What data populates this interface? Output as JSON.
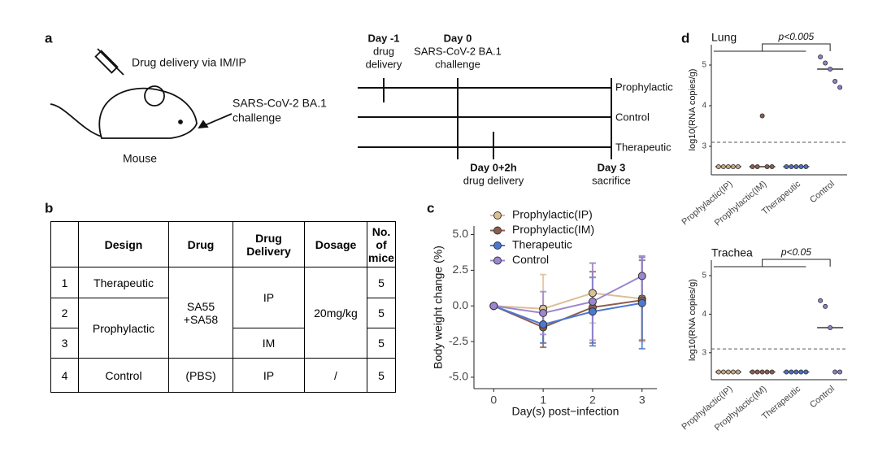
{
  "panel_labels": {
    "a": "a",
    "b": "b",
    "c": "c",
    "d": "d"
  },
  "diagram": {
    "drug_delivery": "Drug delivery via IM/IP",
    "challenge_line1": "SARS-CoV-2 BA.1",
    "challenge_line2": "challenge",
    "mouse": "Mouse",
    "timeline": {
      "day_m1": "Day -1",
      "day_m1_note1": "drug",
      "day_m1_note2": "delivery",
      "day0": "Day 0",
      "day0_note1": "SARS-CoV-2 BA.1",
      "day0_note2": "challenge",
      "groups": [
        "Prophylactic",
        "Control",
        "Therapeutic"
      ],
      "day0_2h": "Day 0+2h",
      "day0_2h_note": "drug delivery",
      "day3": "Day 3",
      "day3_note": "sacrifice"
    }
  },
  "table": {
    "header": [
      "Design",
      "Drug",
      "Drug Delivery",
      "Dosage",
      "No. of mice"
    ],
    "row_numbers": [
      "1",
      "2",
      "3",
      "4"
    ],
    "design": [
      "Therapeutic",
      "Prophylactic",
      "Control"
    ],
    "drug": [
      "SA55 +SA58",
      "(PBS)"
    ],
    "delivery": [
      "IP",
      "IM",
      "IP"
    ],
    "dosage": [
      "20mg/kg",
      "/"
    ],
    "mice": [
      "5",
      "5",
      "5",
      "5"
    ]
  },
  "chart_data": [
    {
      "type": "line",
      "xlabel": "Day(s) post−infection",
      "ylabel": "Body weight change (%)",
      "x": [
        0,
        1,
        2,
        3
      ],
      "xlim": [
        -0.4,
        3.3
      ],
      "xticks": [
        0,
        1,
        2,
        3
      ],
      "ylim": [
        -5.8,
        5.6
      ],
      "yticks": [
        {
          "value": -5,
          "label": "-5.0"
        },
        {
          "value": -2.5,
          "label": "-2.5"
        },
        {
          "value": 0,
          "label": "0.0"
        },
        {
          "value": 2.5,
          "label": "2.5"
        },
        {
          "value": 5,
          "label": "5.0"
        }
      ],
      "series": [
        {
          "name": "Prophylactic(IP)",
          "color": "#dcbf95",
          "values": [
            0,
            -0.2,
            0.9,
            0.5
          ],
          "errors": [
            0,
            2.4,
            2.1,
            3.0
          ]
        },
        {
          "name": "Prophylactic(IM)",
          "color": "#8c5e50",
          "values": [
            0,
            -1.5,
            -0.1,
            0.4
          ],
          "errors": [
            0,
            1.4,
            2.5,
            2.8
          ]
        },
        {
          "name": "Therapeutic",
          "color": "#4b78d2",
          "values": [
            0,
            -1.3,
            -0.4,
            0.2
          ],
          "errors": [
            0,
            1.3,
            2.4,
            3.2
          ]
        },
        {
          "name": "Control",
          "color": "#9d86cf",
          "values": [
            0,
            -0.5,
            0.3,
            2.1
          ],
          "errors": [
            0,
            1.5,
            2.7,
            1.4
          ]
        }
      ]
    },
    {
      "type": "dot",
      "title": "Lung",
      "ylabel": "log10(RNA copies/g)",
      "annotation": "p<0.005",
      "categories": [
        "Prophylactic(IP)",
        "Prophylactic(IM)",
        "Therapeutic",
        "Control"
      ],
      "colors": [
        "#c9a77f",
        "#8c5e50",
        "#4b6fc6",
        "#8f7fc9"
      ],
      "points": [
        [
          2.5,
          2.5,
          2.5,
          2.5,
          2.5
        ],
        [
          2.5,
          2.5,
          3.75,
          2.5,
          2.5
        ],
        [
          2.5,
          2.5,
          2.5,
          2.5,
          2.5
        ],
        [
          5.2,
          5.05,
          4.9,
          4.6,
          4.45
        ]
      ],
      "medians": [
        2.5,
        2.5,
        2.5,
        4.9
      ],
      "threshold": 3.1,
      "ylim": [
        2.3,
        5.5
      ],
      "yticks": [
        3,
        4,
        5
      ]
    },
    {
      "type": "dot",
      "title": "Trachea",
      "ylabel": "log10(RNA copies/g)",
      "annotation": "p<0.05",
      "categories": [
        "Prophylactic(IP)",
        "Prophylactic(IM)",
        "Therapeutic",
        "Control"
      ],
      "colors": [
        "#c9a77f",
        "#8c5e50",
        "#4b6fc6",
        "#8f7fc9"
      ],
      "points": [
        [
          2.5,
          2.5,
          2.5,
          2.5,
          2.5
        ],
        [
          2.5,
          2.5,
          2.5,
          2.5,
          2.5
        ],
        [
          2.5,
          2.5,
          2.5,
          2.5,
          2.5
        ],
        [
          4.35,
          4.2,
          3.65,
          2.5,
          2.5
        ]
      ],
      "medians": [
        2.5,
        2.5,
        2.5,
        3.65
      ],
      "threshold": 3.1,
      "ylim": [
        2.3,
        5.4
      ],
      "yticks": [
        3,
        4,
        5
      ]
    }
  ]
}
